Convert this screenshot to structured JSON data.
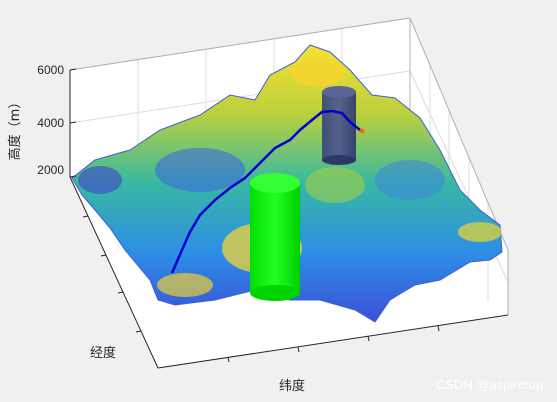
{
  "chart_data": {
    "type": "surface",
    "title": "",
    "xlabel": "纬度",
    "ylabel": "经度",
    "zlabel": "高度（m）",
    "z_ticks": [
      2000,
      4000,
      6000
    ],
    "zlim": [
      2000,
      6000
    ],
    "grid": true,
    "colormap": "parula",
    "series": [
      {
        "name": "",
        "kind": "terrain-surface"
      },
      {
        "name": "",
        "kind": "flight-path",
        "color": "#0000cd"
      },
      {
        "name": "",
        "kind": "threat-cylinder",
        "color": "#00ff00"
      },
      {
        "name": "",
        "kind": "threat-cylinder",
        "color": "#2e3a6e"
      }
    ]
  },
  "watermark": "CSDN @aspiretop",
  "colors": {
    "background": "#f0f0f0",
    "axes": "#ffffff",
    "grid": "#dcdcdc",
    "path": "#0000cd",
    "cylinder_green": "#00ff00",
    "cylinder_dark": "#2e3a6e"
  }
}
